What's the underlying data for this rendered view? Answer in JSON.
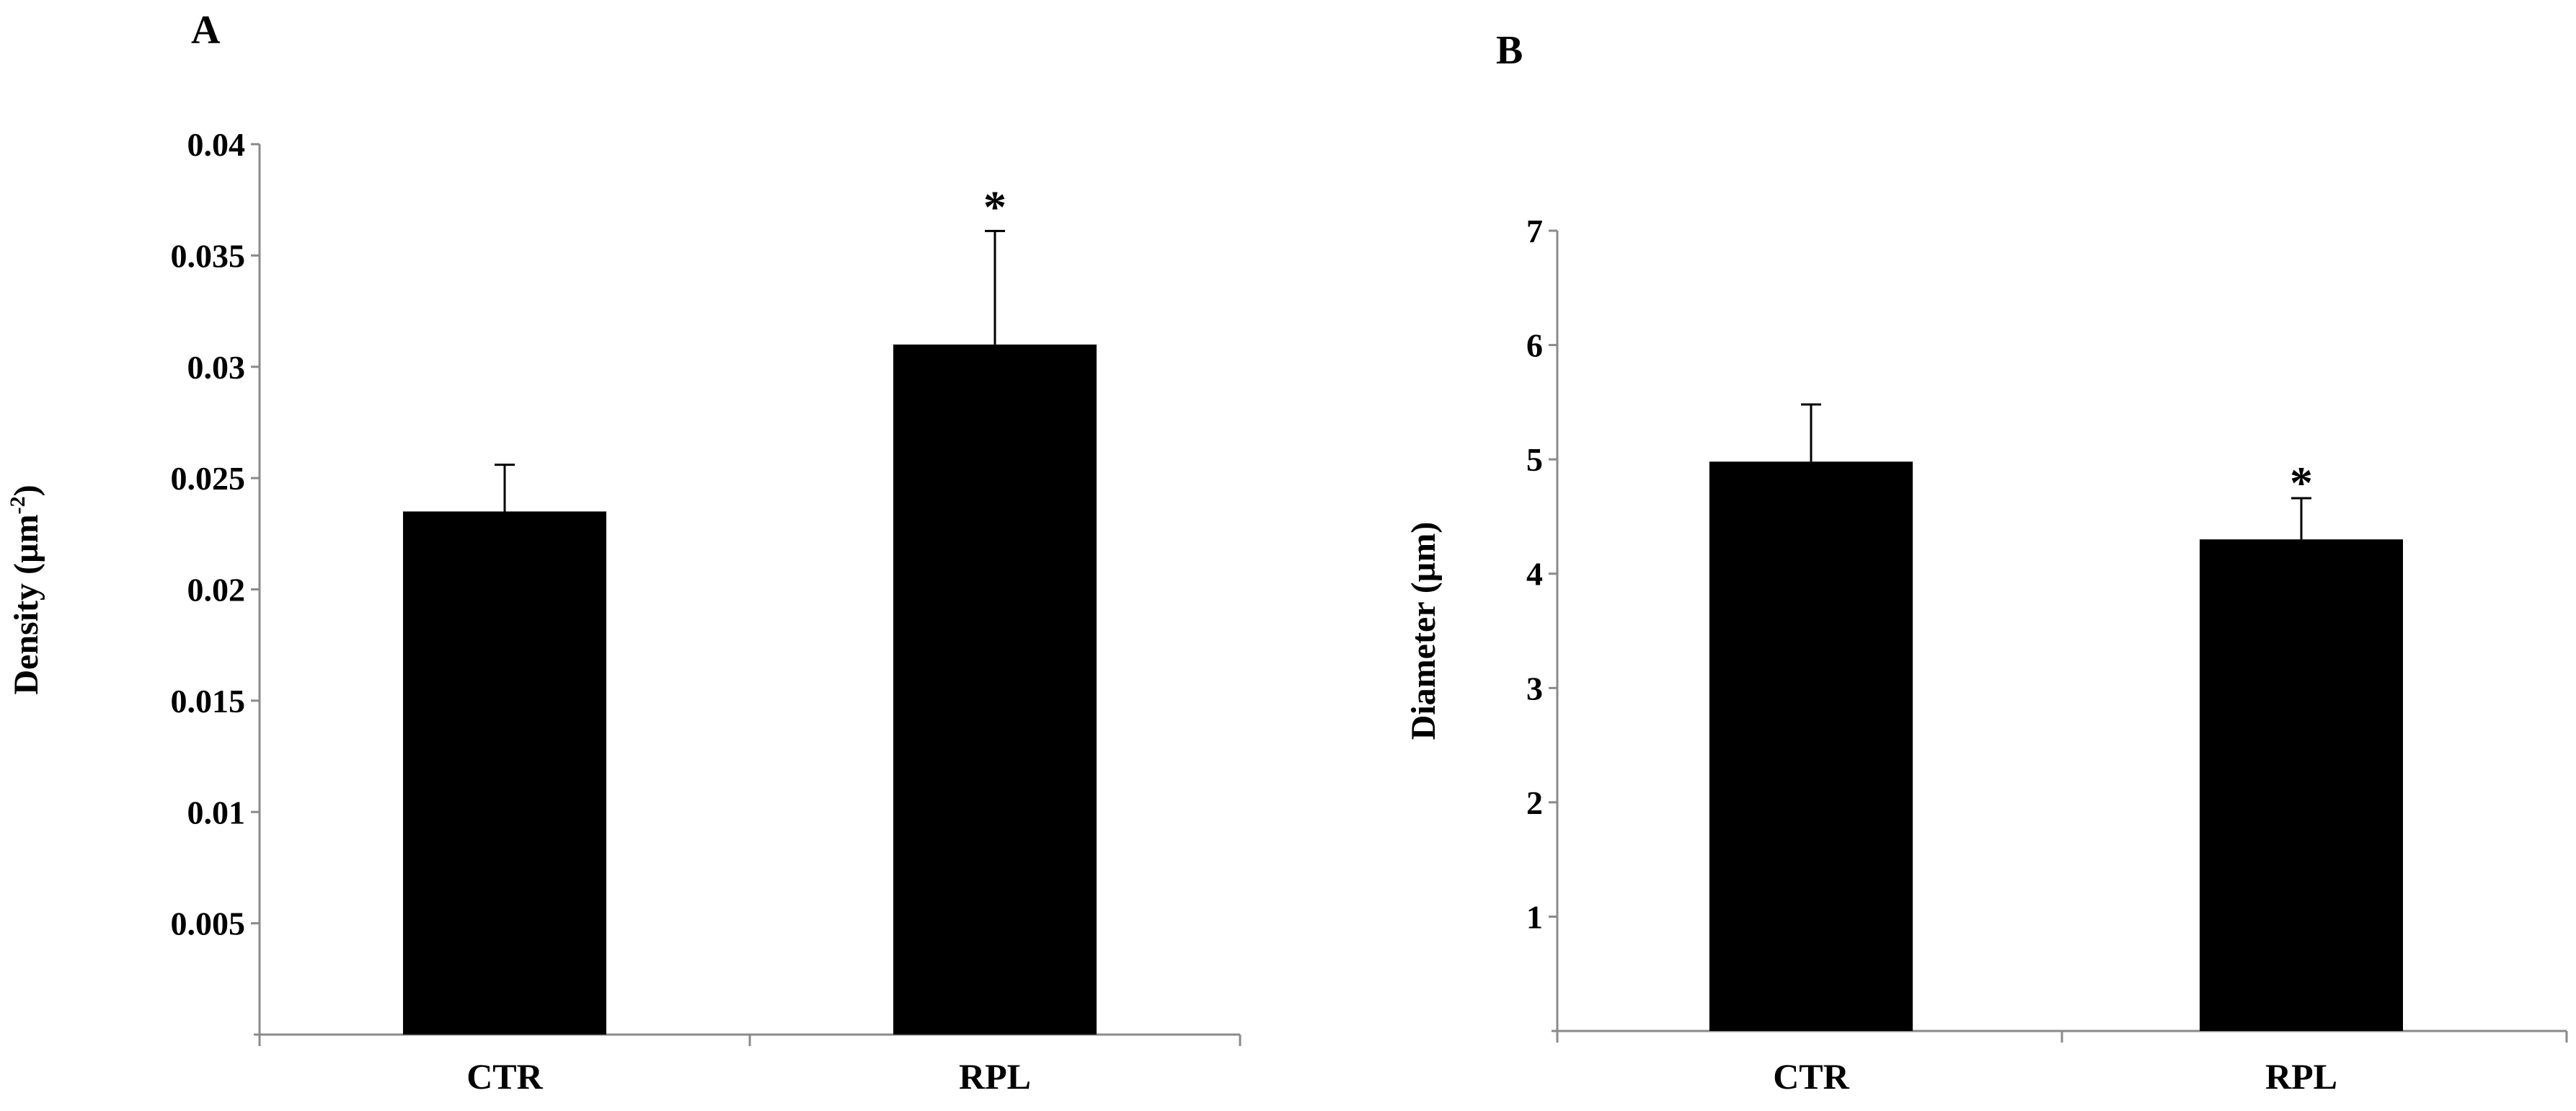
{
  "colors": {
    "bar": "#000000",
    "axis": "#8a8a8a",
    "text": "#000000",
    "background": "#ffffff"
  },
  "chart_data": [
    {
      "type": "bar",
      "panel_label": "A",
      "categories": [
        "CTR",
        "RPL"
      ],
      "values": [
        0.0235,
        0.031
      ],
      "error_plus": [
        0.0021,
        0.0051
      ],
      "significance": [
        "",
        "*"
      ],
      "ylabel_main": "Density (µm",
      "ylabel_sup": "-2",
      "ylabel_close": ")",
      "ylim": [
        0,
        0.04
      ],
      "yticks": [
        0.005,
        0.01,
        0.015,
        0.02,
        0.025,
        0.03,
        0.035,
        0.04
      ],
      "ytick_labels": [
        "0.005",
        "0.01",
        "0.015",
        "0.02",
        "0.025",
        "0.03",
        "0.035",
        "0.04"
      ],
      "grid": false
    },
    {
      "type": "bar",
      "panel_label": "B",
      "categories": [
        "CTR",
        "RPL"
      ],
      "values": [
        4.98,
        4.3
      ],
      "error_plus": [
        0.5,
        0.36
      ],
      "significance": [
        "",
        "*"
      ],
      "ylabel_main": "Diameter (µm)",
      "ylabel_sup": "",
      "ylabel_close": "",
      "ylim": [
        0,
        7
      ],
      "yticks": [
        1,
        2,
        3,
        4,
        5,
        6,
        7
      ],
      "ytick_labels": [
        "1",
        "2",
        "3",
        "4",
        "5",
        "6",
        "7"
      ],
      "grid": false
    }
  ]
}
